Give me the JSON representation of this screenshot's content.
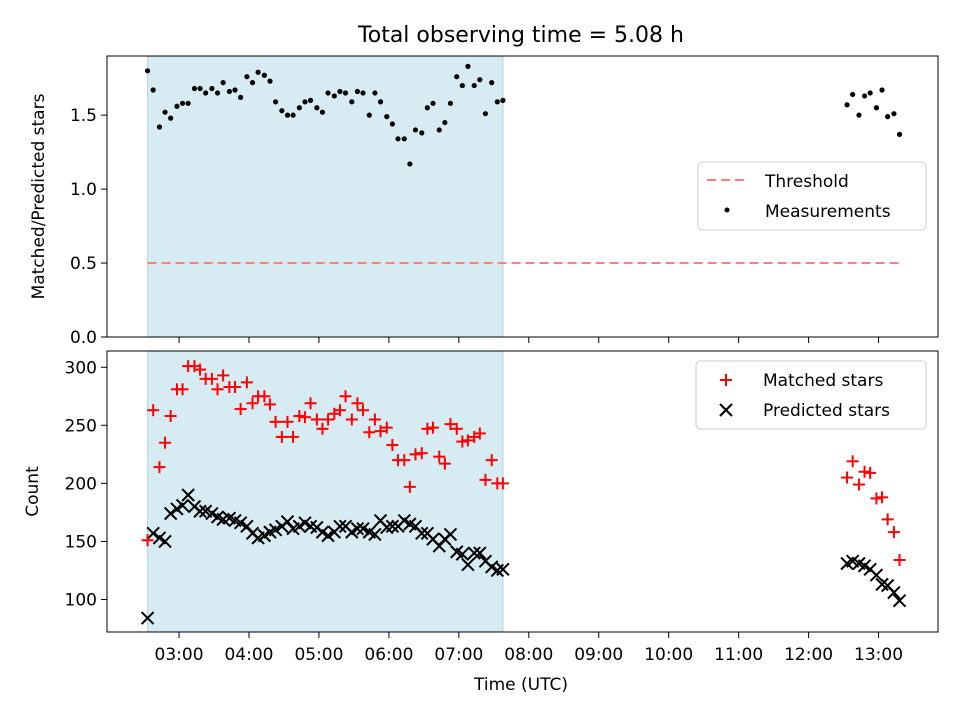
{
  "colors": {
    "shade": "#add8e6",
    "threshold": "#ff7f7f",
    "matched": "#ff0000",
    "predicted": "#000000",
    "measurement": "#000000"
  },
  "chart_data": [
    {
      "type": "scatter",
      "title": "Total observing time = 5.08 h",
      "xlabel": "",
      "ylabel": "Matched/Predicted stars",
      "x_unit": "hours UTC",
      "xlim": [
        1.97,
        13.85
      ],
      "ylim": [
        0.0,
        1.9
      ],
      "yticks": [
        0.0,
        0.5,
        1.0,
        1.5
      ],
      "ytick_labels": [
        "0.0",
        "0.5",
        "1.0",
        "1.5"
      ],
      "shaded_interval": {
        "start": 2.55,
        "end": 7.63
      },
      "legend": {
        "position": "center-right",
        "entries": [
          "Threshold",
          "Measurements"
        ]
      },
      "series": [
        {
          "name": "Threshold",
          "style": "dashed-line",
          "x": [
            2.55,
            13.33
          ],
          "y": [
            0.5,
            0.5
          ]
        },
        {
          "name": "Measurements",
          "style": "dot",
          "x": [
            2.55,
            2.63,
            2.72,
            2.8,
            2.88,
            2.97,
            3.05,
            3.13,
            3.22,
            3.3,
            3.38,
            3.47,
            3.55,
            3.63,
            3.72,
            3.8,
            3.88,
            3.97,
            4.05,
            4.13,
            4.22,
            4.3,
            4.38,
            4.47,
            4.55,
            4.63,
            4.72,
            4.8,
            4.88,
            4.97,
            5.05,
            5.13,
            5.22,
            5.3,
            5.38,
            5.47,
            5.55,
            5.63,
            5.72,
            5.8,
            5.88,
            5.97,
            6.05,
            6.13,
            6.22,
            6.3,
            6.38,
            6.47,
            6.55,
            6.63,
            6.72,
            6.8,
            6.88,
            6.97,
            7.05,
            7.13,
            7.22,
            7.3,
            7.38,
            7.47,
            7.55,
            7.63,
            12.55,
            12.63,
            12.72,
            12.8,
            12.88,
            12.97,
            13.05,
            13.13,
            13.22,
            13.3
          ],
          "y": [
            1.8,
            1.67,
            1.42,
            1.52,
            1.48,
            1.56,
            1.58,
            1.58,
            1.68,
            1.68,
            1.65,
            1.68,
            1.65,
            1.72,
            1.66,
            1.67,
            1.62,
            1.76,
            1.72,
            1.79,
            1.77,
            1.73,
            1.59,
            1.53,
            1.5,
            1.5,
            1.55,
            1.59,
            1.6,
            1.55,
            1.52,
            1.65,
            1.63,
            1.66,
            1.65,
            1.59,
            1.66,
            1.65,
            1.5,
            1.65,
            1.59,
            1.49,
            1.44,
            1.34,
            1.34,
            1.17,
            1.4,
            1.38,
            1.55,
            1.58,
            1.4,
            1.45,
            1.58,
            1.76,
            1.7,
            1.83,
            1.7,
            1.74,
            1.51,
            1.72,
            1.59,
            1.6,
            1.57,
            1.64,
            1.5,
            1.63,
            1.65,
            1.55,
            1.67,
            1.49,
            1.51,
            1.37
          ]
        }
      ]
    },
    {
      "type": "scatter",
      "title": "",
      "xlabel": "Time (UTC)",
      "ylabel": "Count",
      "x_unit": "hours UTC",
      "xlim": [
        1.97,
        13.85
      ],
      "ylim": [
        72,
        314
      ],
      "xticks": [
        3,
        4,
        5,
        6,
        7,
        8,
        9,
        10,
        11,
        12,
        13
      ],
      "xtick_labels": [
        "03:00",
        "04:00",
        "05:00",
        "06:00",
        "07:00",
        "08:00",
        "09:00",
        "10:00",
        "11:00",
        "12:00",
        "13:00"
      ],
      "yticks": [
        100,
        150,
        200,
        250,
        300
      ],
      "ytick_labels": [
        "100",
        "150",
        "200",
        "250",
        "300"
      ],
      "shaded_interval": {
        "start": 2.55,
        "end": 7.63
      },
      "legend": {
        "position": "top-right",
        "entries": [
          "Matched stars",
          "Predicted stars"
        ]
      },
      "series": [
        {
          "name": "Matched stars",
          "style": "plus",
          "x": [
            2.55,
            2.63,
            2.72,
            2.8,
            2.88,
            2.97,
            3.05,
            3.13,
            3.22,
            3.3,
            3.38,
            3.47,
            3.55,
            3.63,
            3.72,
            3.8,
            3.88,
            3.97,
            4.05,
            4.13,
            4.22,
            4.3,
            4.38,
            4.47,
            4.55,
            4.63,
            4.72,
            4.8,
            4.88,
            4.97,
            5.05,
            5.13,
            5.22,
            5.3,
            5.38,
            5.47,
            5.55,
            5.63,
            5.72,
            5.8,
            5.88,
            5.97,
            6.05,
            6.13,
            6.22,
            6.3,
            6.38,
            6.47,
            6.55,
            6.63,
            6.72,
            6.8,
            6.88,
            6.97,
            7.05,
            7.13,
            7.22,
            7.3,
            7.38,
            7.47,
            7.55,
            7.63,
            12.55,
            12.63,
            12.72,
            12.8,
            12.88,
            12.97,
            13.05,
            13.13,
            13.22,
            13.3
          ],
          "y": [
            151,
            263,
            214,
            235,
            258,
            281,
            281,
            301,
            301,
            298,
            290,
            290,
            281,
            293,
            283,
            283,
            264,
            287,
            269,
            275,
            275,
            268,
            253,
            240,
            253,
            240,
            258,
            257,
            269,
            255,
            247,
            255,
            260,
            263,
            275,
            255,
            269,
            263,
            244,
            255,
            245,
            248,
            233,
            220,
            220,
            197,
            225,
            226,
            247,
            248,
            223,
            217,
            251,
            247,
            236,
            237,
            240,
            243,
            203,
            220,
            200,
            200,
            205,
            219,
            199,
            210,
            209,
            187,
            188,
            169,
            158,
            134
          ]
        },
        {
          "name": "Predicted stars",
          "style": "x",
          "x": [
            2.55,
            2.63,
            2.72,
            2.8,
            2.88,
            2.97,
            3.05,
            3.13,
            3.22,
            3.3,
            3.38,
            3.47,
            3.55,
            3.63,
            3.72,
            3.8,
            3.88,
            3.97,
            4.05,
            4.13,
            4.22,
            4.3,
            4.38,
            4.47,
            4.55,
            4.63,
            4.72,
            4.8,
            4.88,
            4.97,
            5.05,
            5.13,
            5.22,
            5.3,
            5.38,
            5.47,
            5.55,
            5.63,
            5.72,
            5.8,
            5.88,
            5.97,
            6.05,
            6.13,
            6.22,
            6.3,
            6.38,
            6.47,
            6.55,
            6.63,
            6.72,
            6.8,
            6.88,
            6.97,
            7.05,
            7.13,
            7.22,
            7.3,
            7.38,
            7.47,
            7.55,
            7.63,
            12.55,
            12.63,
            12.72,
            12.8,
            12.88,
            12.97,
            13.05,
            13.13,
            13.22,
            13.3
          ],
          "y": [
            84,
            157,
            153,
            150,
            174,
            178,
            181,
            190,
            180,
            176,
            176,
            174,
            171,
            169,
            170,
            168,
            166,
            163,
            157,
            153,
            155,
            158,
            160,
            163,
            167,
            161,
            163,
            166,
            163,
            162,
            158,
            155,
            158,
            163,
            163,
            158,
            161,
            161,
            158,
            156,
            168,
            162,
            163,
            163,
            168,
            165,
            163,
            157,
            157,
            152,
            146,
            152,
            156,
            141,
            139,
            130,
            140,
            140,
            133,
            128,
            125,
            126,
            131,
            133,
            131,
            129,
            126,
            121,
            113,
            112,
            106,
            99
          ]
        }
      ]
    }
  ]
}
